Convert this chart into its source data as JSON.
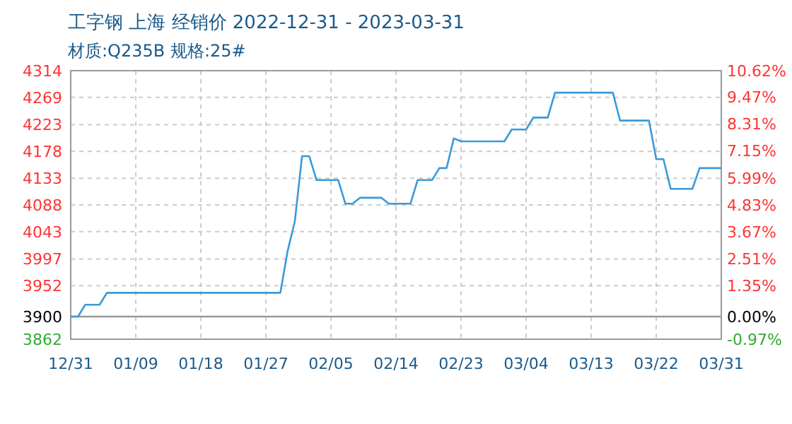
{
  "chart_data": {
    "type": "line",
    "title": "工字钢 上海 经销价 2022-12-31 - 2023-03-31",
    "subtitle": "材质:Q235B 规格:25#",
    "x": [
      "2022-12-31",
      "2023-01-01",
      "2023-01-02",
      "2023-01-04",
      "2023-01-05",
      "2023-01-29",
      "2023-01-30",
      "2023-01-31",
      "2023-02-01",
      "2023-02-02",
      "2023-02-03",
      "2023-02-06",
      "2023-02-07",
      "2023-02-08",
      "2023-02-09",
      "2023-02-12",
      "2023-02-13",
      "2023-02-16",
      "2023-02-17",
      "2023-02-19",
      "2023-02-20",
      "2023-02-21",
      "2023-02-22",
      "2023-02-23",
      "2023-03-01",
      "2023-03-02",
      "2023-03-04",
      "2023-03-05",
      "2023-03-07",
      "2023-03-08",
      "2023-03-16",
      "2023-03-17",
      "2023-03-21",
      "2023-03-22",
      "2023-03-23",
      "2023-03-24",
      "2023-03-27",
      "2023-03-28",
      "2023-03-31"
    ],
    "series": [
      {
        "color": "#3a9ad9",
        "values": [
          3900,
          3900,
          3920,
          3920,
          3940,
          3940,
          4010,
          4060,
          4170,
          4170,
          4130,
          4130,
          4090,
          4090,
          4100,
          4100,
          4090,
          4090,
          4130,
          4130,
          4150,
          4150,
          4200,
          4195,
          4195,
          4215,
          4215,
          4235,
          4235,
          4277,
          4277,
          4230,
          4230,
          4165,
          4165,
          4115,
          4115,
          4150,
          4150
        ]
      }
    ],
    "xlim": [
      "2022-12-31",
      "2023-03-31"
    ],
    "xticks": [
      {
        "value": "2022-12-31",
        "label": "12/31"
      },
      {
        "value": "2023-01-09",
        "label": "01/09"
      },
      {
        "value": "2023-01-18",
        "label": "01/18"
      },
      {
        "value": "2023-01-27",
        "label": "01/27"
      },
      {
        "value": "2023-02-05",
        "label": "02/05"
      },
      {
        "value": "2023-02-14",
        "label": "02/14"
      },
      {
        "value": "2023-02-23",
        "label": "02/23"
      },
      {
        "value": "2023-03-04",
        "label": "03/04"
      },
      {
        "value": "2023-03-13",
        "label": "03/13"
      },
      {
        "value": "2023-03-22",
        "label": "03/22"
      },
      {
        "value": "2023-03-31",
        "label": "03/31"
      }
    ],
    "ylim": [
      3862,
      4314
    ],
    "yticks": [
      3862,
      3900,
      3952,
      3997,
      4043,
      4088,
      4133,
      4178,
      4223,
      4269,
      4314
    ],
    "y2lim": [
      -0.97,
      10.62
    ],
    "y2ticks": [
      {
        "value": -0.97,
        "label": "-0.97%"
      },
      {
        "value": 0,
        "label": "0.00%"
      },
      {
        "value": 1.35,
        "label": "1.35%"
      },
      {
        "value": 2.51,
        "label": "2.51%"
      },
      {
        "value": 3.67,
        "label": "3.67%"
      },
      {
        "value": 4.83,
        "label": "4.83%"
      },
      {
        "value": 5.99,
        "label": "5.99%"
      },
      {
        "value": 7.15,
        "label": "7.15%"
      },
      {
        "value": 8.31,
        "label": "8.31%"
      },
      {
        "value": 9.47,
        "label": "9.47%"
      },
      {
        "value": 10.62,
        "label": "10.62%"
      }
    ],
    "ref_lines": [
      {
        "axis": "y",
        "value": 3900,
        "color": "#999999"
      }
    ],
    "grid": true,
    "marker": "none",
    "line_style": "solid"
  }
}
